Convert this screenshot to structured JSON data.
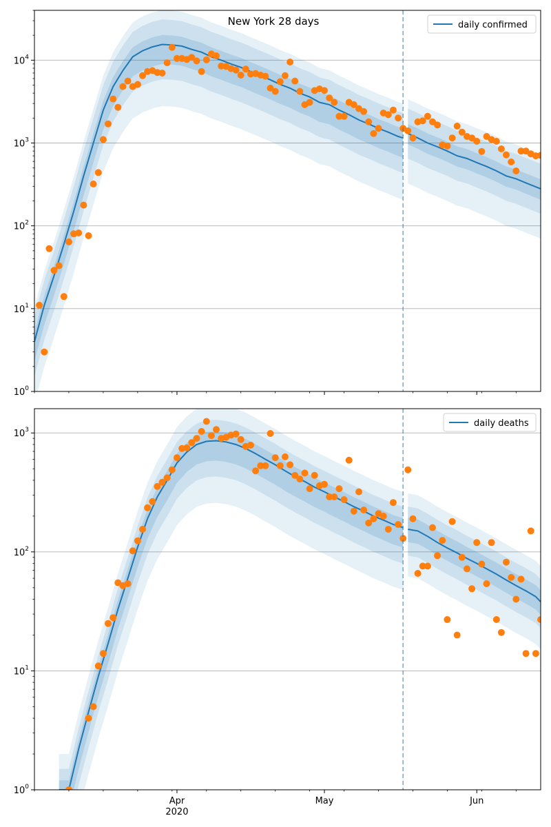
{
  "figure": {
    "title": "New York 28 days"
  },
  "colors": {
    "line": "#1f77b4",
    "band": "#1f77b4",
    "points": "#ff7f0e",
    "grid": "#b0b0b0",
    "split_line": "#1f77b4"
  },
  "chart_data": [
    {
      "type": "line",
      "title": "New York 28 days",
      "xlabel": "",
      "ylabel": "",
      "yscale": "log",
      "ylim": [
        1,
        40000
      ],
      "y_tick_labels": [
        "10^0",
        "10^1",
        "10^2",
        "10^3",
        "10^4"
      ],
      "y_ticks": [
        1,
        10,
        100,
        1000,
        10000
      ],
      "x_ticks": [
        "2020-04-01",
        "2020-05-01",
        "2020-06-01"
      ],
      "x_tick_labels": [
        "Apr",
        "May",
        "Jun"
      ],
      "x_year_label": "2020",
      "xlim": [
        "2020-03-03",
        "2020-06-14"
      ],
      "split_date": "2020-05-17",
      "grid": "horizontal",
      "legend": "top-right",
      "series": [
        {
          "name": "daily confirmed",
          "kind": "model",
          "x": [
            "2020-03-03",
            "2020-03-05",
            "2020-03-07",
            "2020-03-09",
            "2020-03-11",
            "2020-03-13",
            "2020-03-15",
            "2020-03-17",
            "2020-03-19",
            "2020-03-21",
            "2020-03-23",
            "2020-03-25",
            "2020-03-27",
            "2020-03-29",
            "2020-03-31",
            "2020-04-02",
            "2020-04-04",
            "2020-04-06",
            "2020-04-08",
            "2020-04-10",
            "2020-04-12",
            "2020-04-14",
            "2020-04-16",
            "2020-04-18",
            "2020-04-20",
            "2020-04-22",
            "2020-04-24",
            "2020-04-26",
            "2020-04-28",
            "2020-04-30",
            "2020-05-02",
            "2020-05-04",
            "2020-05-06",
            "2020-05-08",
            "2020-05-10",
            "2020-05-12",
            "2020-05-14",
            "2020-05-16",
            "2020-05-17",
            "2020-05-18",
            "2020-05-20",
            "2020-05-22",
            "2020-05-24",
            "2020-05-26",
            "2020-05-28",
            "2020-05-30",
            "2020-06-01",
            "2020-06-03",
            "2020-06-05",
            "2020-06-07",
            "2020-06-09",
            "2020-06-11",
            "2020-06-14"
          ],
          "y": [
            4,
            11,
            25,
            60,
            150,
            400,
            1000,
            2500,
            4800,
            7500,
            11000,
            13000,
            14500,
            15500,
            15300,
            14800,
            13500,
            12500,
            11000,
            10000,
            9000,
            8200,
            7300,
            6500,
            5800,
            5100,
            4600,
            4000,
            3600,
            3100,
            2900,
            2500,
            2200,
            1900,
            1700,
            1500,
            1350,
            1200,
            1150,
            1300,
            1150,
            1000,
            900,
            800,
            700,
            650,
            580,
            520,
            460,
            400,
            370,
            330,
            280
          ],
          "band50": [
            [
              0.58,
              1.3
            ],
            [
              0.74,
              1.3
            ]
          ],
          "band80": [
            [
              0.38,
              2.0
            ],
            [
              0.5,
              2.0
            ]
          ],
          "band95": [
            [
              0.18,
              2.6
            ],
            [
              0.25,
              2.6
            ]
          ]
        },
        {
          "name": "",
          "kind": "observed",
          "x": [
            "2020-03-04",
            "2020-03-05",
            "2020-03-06",
            "2020-03-07",
            "2020-03-08",
            "2020-03-09",
            "2020-03-10",
            "2020-03-11",
            "2020-03-12",
            "2020-03-13",
            "2020-03-14",
            "2020-03-15",
            "2020-03-16",
            "2020-03-17",
            "2020-03-18",
            "2020-03-19",
            "2020-03-20",
            "2020-03-21",
            "2020-03-22",
            "2020-03-23",
            "2020-03-24",
            "2020-03-25",
            "2020-03-26",
            "2020-03-27",
            "2020-03-28",
            "2020-03-29",
            "2020-03-30",
            "2020-03-31",
            "2020-04-01",
            "2020-04-02",
            "2020-04-03",
            "2020-04-04",
            "2020-04-05",
            "2020-04-06",
            "2020-04-07",
            "2020-04-08",
            "2020-04-09",
            "2020-04-10",
            "2020-04-11",
            "2020-04-12",
            "2020-04-13",
            "2020-04-14",
            "2020-04-15",
            "2020-04-16",
            "2020-04-17",
            "2020-04-18",
            "2020-04-19",
            "2020-04-20",
            "2020-04-21",
            "2020-04-22",
            "2020-04-23",
            "2020-04-24",
            "2020-04-25",
            "2020-04-26",
            "2020-04-27",
            "2020-04-28",
            "2020-04-29",
            "2020-04-30",
            "2020-05-01",
            "2020-05-02",
            "2020-05-03",
            "2020-05-04",
            "2020-05-05",
            "2020-05-06",
            "2020-05-07",
            "2020-05-08",
            "2020-05-09",
            "2020-05-10",
            "2020-05-11",
            "2020-05-12",
            "2020-05-13",
            "2020-05-14",
            "2020-05-15",
            "2020-05-16",
            "2020-05-17",
            "2020-05-18",
            "2020-05-19",
            "2020-05-20",
            "2020-05-21",
            "2020-05-22",
            "2020-05-23",
            "2020-05-24",
            "2020-05-25",
            "2020-05-26",
            "2020-05-27",
            "2020-05-28",
            "2020-05-29",
            "2020-05-30",
            "2020-05-31",
            "2020-06-01",
            "2020-06-02",
            "2020-06-03",
            "2020-06-04",
            "2020-06-05",
            "2020-06-06",
            "2020-06-07",
            "2020-06-08",
            "2020-06-09",
            "2020-06-10",
            "2020-06-11",
            "2020-06-12",
            "2020-06-13",
            "2020-06-14"
          ],
          "y": [
            11,
            3,
            53,
            29,
            33,
            14,
            64,
            80,
            82,
            178,
            76,
            320,
            440,
            1100,
            1700,
            3400,
            2700,
            4800,
            5600,
            4800,
            5100,
            6500,
            7300,
            7500,
            7100,
            7000,
            9300,
            14300,
            10500,
            10500,
            10200,
            10800,
            9800,
            7300,
            10100,
            11900,
            11300,
            8500,
            8400,
            7900,
            7600,
            6600,
            7800,
            6800,
            6900,
            6600,
            6400,
            4600,
            4200,
            5500,
            6500,
            9500,
            5600,
            4200,
            2900,
            3100,
            4300,
            4500,
            4300,
            3500,
            3100,
            2100,
            2100,
            3100,
            2900,
            2600,
            2400,
            1800,
            1300,
            1500,
            2300,
            2200,
            2500,
            2000,
            1500,
            1400,
            1150,
            1800,
            1850,
            2100,
            1800,
            1650,
            950,
            920,
            1150,
            1600,
            1350,
            1200,
            1150,
            1050,
            790,
            1200,
            1100,
            1050,
            850,
            720,
            590,
            460,
            800,
            800,
            740,
            700,
            710
          ]
        }
      ]
    },
    {
      "type": "line",
      "title": "",
      "xlabel": "",
      "ylabel": "",
      "yscale": "log",
      "ylim": [
        1,
        1600
      ],
      "y_tick_labels": [
        "10^0",
        "10^1",
        "10^2",
        "10^3"
      ],
      "y_ticks": [
        1,
        10,
        100,
        1000
      ],
      "x_ticks": [
        "2020-04-01",
        "2020-05-01",
        "2020-06-01"
      ],
      "x_tick_labels": [
        "Apr",
        "May",
        "Jun"
      ],
      "x_year_label": "2020",
      "xlim": [
        "2020-03-03",
        "2020-06-14"
      ],
      "split_date": "2020-05-17",
      "grid": "horizontal",
      "legend": "top-right",
      "series": [
        {
          "name": "daily deaths",
          "kind": "model",
          "x": [
            "2020-03-08",
            "2020-03-10",
            "2020-03-12",
            "2020-03-14",
            "2020-03-16",
            "2020-03-18",
            "2020-03-20",
            "2020-03-22",
            "2020-03-24",
            "2020-03-26",
            "2020-03-28",
            "2020-03-30",
            "2020-04-01",
            "2020-04-03",
            "2020-04-05",
            "2020-04-07",
            "2020-04-09",
            "2020-04-11",
            "2020-04-13",
            "2020-04-15",
            "2020-04-17",
            "2020-04-19",
            "2020-04-21",
            "2020-04-23",
            "2020-04-25",
            "2020-04-27",
            "2020-04-29",
            "2020-05-01",
            "2020-05-03",
            "2020-05-05",
            "2020-05-07",
            "2020-05-09",
            "2020-05-11",
            "2020-05-13",
            "2020-05-15",
            "2020-05-17",
            "2020-05-18",
            "2020-05-20",
            "2020-05-22",
            "2020-05-24",
            "2020-05-26",
            "2020-05-28",
            "2020-05-30",
            "2020-06-01",
            "2020-06-03",
            "2020-06-05",
            "2020-06-07",
            "2020-06-09",
            "2020-06-11",
            "2020-06-13",
            "2020-06-14"
          ],
          "y": [
            1,
            1,
            2.2,
            4.5,
            9,
            17,
            33,
            60,
            110,
            190,
            290,
            400,
            560,
            690,
            800,
            850,
            860,
            840,
            800,
            740,
            670,
            600,
            540,
            480,
            430,
            390,
            350,
            320,
            290,
            265,
            240,
            220,
            200,
            185,
            170,
            160,
            155,
            150,
            135,
            120,
            108,
            98,
            88,
            80,
            72,
            65,
            58,
            52,
            47,
            42,
            38
          ],
          "band50": [
            [
              0.68,
              1.2
            ],
            [
              0.78,
              1.25
            ]
          ],
          "band80": [
            [
              0.5,
              1.5
            ],
            [
              0.6,
              1.55
            ]
          ],
          "band95": [
            [
              0.3,
              2.0
            ],
            [
              0.4,
              2.0
            ]
          ]
        },
        {
          "name": "",
          "kind": "observed",
          "x": [
            "2020-03-10",
            "2020-03-14",
            "2020-03-15",
            "2020-03-16",
            "2020-03-17",
            "2020-03-18",
            "2020-03-19",
            "2020-03-20",
            "2020-03-21",
            "2020-03-22",
            "2020-03-23",
            "2020-03-24",
            "2020-03-25",
            "2020-03-26",
            "2020-03-27",
            "2020-03-28",
            "2020-03-29",
            "2020-03-30",
            "2020-03-31",
            "2020-04-01",
            "2020-04-02",
            "2020-04-03",
            "2020-04-04",
            "2020-04-05",
            "2020-04-06",
            "2020-04-07",
            "2020-04-08",
            "2020-04-09",
            "2020-04-10",
            "2020-04-11",
            "2020-04-12",
            "2020-04-13",
            "2020-04-14",
            "2020-04-15",
            "2020-04-16",
            "2020-04-17",
            "2020-04-18",
            "2020-04-19",
            "2020-04-20",
            "2020-04-21",
            "2020-04-22",
            "2020-04-23",
            "2020-04-24",
            "2020-04-25",
            "2020-04-26",
            "2020-04-27",
            "2020-04-28",
            "2020-04-29",
            "2020-04-30",
            "2020-05-01",
            "2020-05-02",
            "2020-05-03",
            "2020-05-04",
            "2020-05-05",
            "2020-05-06",
            "2020-05-07",
            "2020-05-08",
            "2020-05-09",
            "2020-05-10",
            "2020-05-11",
            "2020-05-12",
            "2020-05-13",
            "2020-05-14",
            "2020-05-15",
            "2020-05-16",
            "2020-05-17",
            "2020-05-18",
            "2020-05-19",
            "2020-05-20",
            "2020-05-21",
            "2020-05-22",
            "2020-05-23",
            "2020-05-24",
            "2020-05-25",
            "2020-05-26",
            "2020-05-27",
            "2020-05-28",
            "2020-05-29",
            "2020-05-30",
            "2020-05-31",
            "2020-06-01",
            "2020-06-02",
            "2020-06-03",
            "2020-06-04",
            "2020-06-05",
            "2020-06-06",
            "2020-06-07",
            "2020-06-08",
            "2020-06-09",
            "2020-06-10",
            "2020-06-11",
            "2020-06-12",
            "2020-06-13",
            "2020-06-14"
          ],
          "y": [
            1,
            4,
            5,
            11,
            14,
            25,
            28,
            55,
            52,
            54,
            102,
            124,
            155,
            235,
            265,
            355,
            385,
            420,
            490,
            620,
            740,
            750,
            830,
            900,
            1030,
            1250,
            950,
            1070,
            900,
            920,
            960,
            980,
            880,
            770,
            790,
            480,
            530,
            530,
            990,
            620,
            530,
            630,
            540,
            440,
            410,
            460,
            340,
            440,
            360,
            370,
            290,
            290,
            340,
            275,
            590,
            220,
            320,
            225,
            175,
            190,
            210,
            200,
            155,
            260,
            170,
            130,
            490,
            190,
            66,
            76,
            76,
            160,
            93,
            125,
            27,
            180,
            20,
            90,
            72,
            49,
            120,
            79,
            54,
            120,
            27,
            21,
            82,
            61,
            40,
            59,
            14,
            150,
            14,
            27
          ]
        }
      ]
    }
  ]
}
